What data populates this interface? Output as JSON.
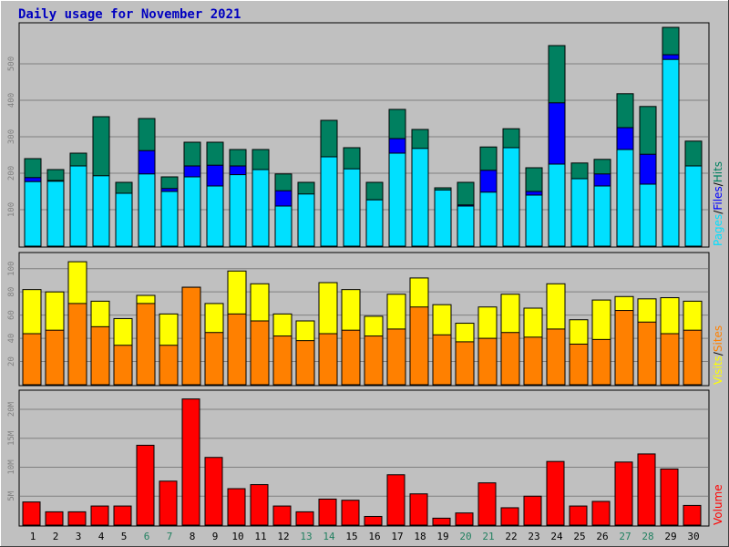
{
  "title": "Daily usage for November 2021",
  "colors": {
    "title": "#0000c0",
    "background": "#c0c0c0",
    "hits": "#008060",
    "files": "#0000ff",
    "pages": "#00e0ff",
    "visits": "#ffff00",
    "sites": "#ff8000",
    "volume": "#ff0000",
    "weekend_label": "#208060",
    "weekday_label": "#000000"
  },
  "legend": {
    "top": {
      "pages": "Pages",
      "sep1": "/",
      "files": "Files",
      "sep2": "/",
      "hits": "Hits"
    },
    "middle": {
      "visits": "Visits",
      "sep1": "/",
      "sites": "Sites"
    },
    "bottom": {
      "volume": "Volume"
    }
  },
  "chart_data": {
    "type": "bar",
    "x": [
      "1",
      "2",
      "3",
      "4",
      "5",
      "6",
      "7",
      "8",
      "9",
      "10",
      "11",
      "12",
      "13",
      "14",
      "15",
      "16",
      "17",
      "18",
      "19",
      "20",
      "21",
      "22",
      "23",
      "24",
      "25",
      "26",
      "27",
      "28",
      "29",
      "30"
    ],
    "weekend_days": [
      "6",
      "7",
      "13",
      "14",
      "20",
      "21",
      "27",
      "28"
    ],
    "panels": [
      {
        "id": "top",
        "ylim": [
          0,
          600
        ],
        "yticks": [
          "100",
          "200",
          "300",
          "400",
          "500"
        ],
        "series": [
          {
            "name": "Hits",
            "values": [
              240,
              210,
              255,
              355,
              175,
              350,
              190,
              285,
              285,
              265,
              265,
              198,
              175,
              345,
              270,
              175,
              375,
              320,
              160,
              175,
              272,
              322,
              215,
              550,
              228,
              238,
              418,
              383,
              600,
              288
            ]
          },
          {
            "name": "Files",
            "values": [
              188,
              180,
              200,
              155,
              145,
              262,
              158,
              220,
              222,
              220,
              205,
              152,
              103,
              235,
              210,
              127,
              295,
              240,
              152,
              113,
              208,
              215,
              150,
              393,
              155,
              198,
              325,
              252,
              525,
              200
            ]
          },
          {
            "name": "Pages",
            "values": [
              177,
              178,
              220,
              193,
              145,
              198,
              150,
              190,
              165,
              196,
              210,
              110,
              143,
              245,
              212,
              127,
              255,
              268,
              154,
              110,
              148,
              270,
              140,
              225,
              185,
              165,
              265,
              170,
              512,
              220
            ]
          }
        ]
      },
      {
        "id": "middle",
        "ylim": [
          0,
          110
        ],
        "yticks": [
          "20",
          "40",
          "60",
          "80",
          "100"
        ],
        "series": [
          {
            "name": "Visits",
            "values": [
              82,
              80,
              106,
              72,
              57,
              77,
              61,
              84,
              70,
              98,
              87,
              61,
              55,
              88,
              82,
              59,
              78,
              92,
              69,
              53,
              67,
              78,
              66,
              87,
              56,
              73,
              76,
              74,
              75,
              72
            ]
          },
          {
            "name": "Sites",
            "values": [
              44,
              47,
              70,
              50,
              34,
              70,
              34,
              84,
              45,
              61,
              55,
              42,
              38,
              44,
              47,
              42,
              48,
              67,
              43,
              37,
              40,
              45,
              41,
              48,
              35,
              39,
              64,
              54,
              44,
              47
            ]
          }
        ]
      },
      {
        "id": "bottom",
        "ylim": [
          0,
          23
        ],
        "yticks": [
          "5M",
          "10M",
          "15M",
          "20M"
        ],
        "series": [
          {
            "name": "Volume",
            "unit": "MB",
            "values": [
              4.0,
              2.3,
              2.3,
              3.3,
              3.3,
              13.8,
              7.6,
              21.8,
              11.7,
              6.3,
              7.0,
              3.3,
              2.3,
              4.5,
              4.3,
              1.5,
              8.7,
              5.4,
              1.2,
              2.1,
              7.3,
              3.0,
              5.0,
              11.0,
              3.3,
              4.1,
              10.9,
              12.3,
              9.7,
              3.4
            ]
          }
        ]
      }
    ]
  }
}
